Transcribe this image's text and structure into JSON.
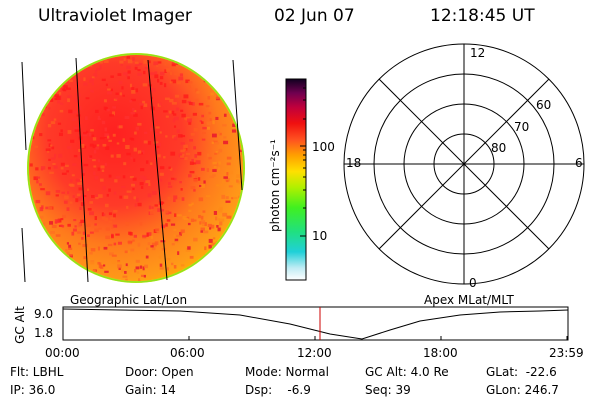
{
  "header": {
    "instrument": "Ultraviolet Imager",
    "date": "02 Jun 07",
    "time": "12:18:45 UT"
  },
  "colorbar": {
    "unit_label": "photon cm⁻²s⁻¹",
    "ticks": [
      "100",
      "10"
    ]
  },
  "polar_plot": {
    "mlt_labels": [
      "12",
      "18",
      "6",
      "0"
    ],
    "mlat_labels": [
      "60",
      "70",
      "80"
    ]
  },
  "coords": {
    "left_label": "Geographic Lat/Lon",
    "right_label": "Apex MLat/MLT"
  },
  "altitude_panel": {
    "ylabel": "GC Alt",
    "y_ticks": [
      "9.0",
      "1.8"
    ],
    "x_ticks": [
      "00:00",
      "06:00",
      "12:00",
      "18:00",
      "23:59"
    ]
  },
  "info": {
    "flt": "Flt: LBHL",
    "ip": "IP: 36.0",
    "door": "Door: Open",
    "gain": "Gain: 14",
    "mode": "Mode: Normal",
    "dsp": "Dsp:    -6.9",
    "gc_alt": "GC Alt: 4.0 Re",
    "seq": "Seq: 39",
    "glat": "GLat:  -22.6",
    "glon": "GLon: 246.7"
  },
  "colors": {
    "disk_base": "#ff9a18",
    "disk_core": "#ff2a2a",
    "disk_edge": "#ffc000",
    "time_marker": "#cc0000"
  }
}
